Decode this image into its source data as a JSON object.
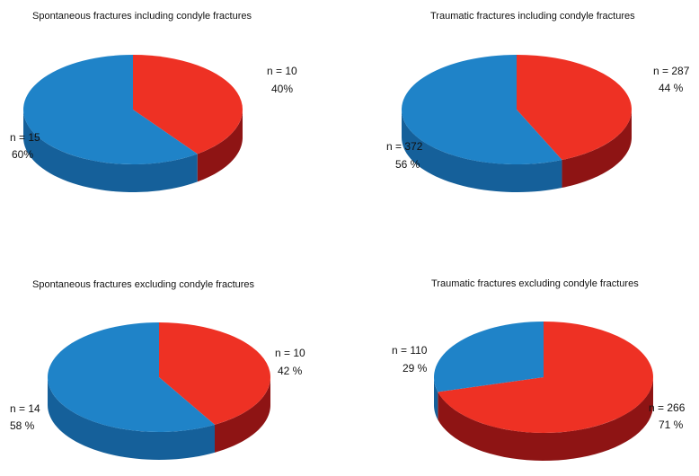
{
  "colors": {
    "blue_top": "#1f83c8",
    "blue_side": "#15609a",
    "red_top": "#ee3124",
    "red_side": "#8e1414"
  },
  "chart_data": [
    {
      "type": "pie",
      "title": "Spontaneous fractures including condyle fractures",
      "slices": [
        {
          "count_label": "n = 10",
          "percent_label": "40%",
          "value": 10,
          "color": "red"
        },
        {
          "count_label": "n = 15",
          "percent_label": "60%",
          "value": 15,
          "color": "blue"
        }
      ]
    },
    {
      "type": "pie",
      "title": "Traumatic fractures including condyle fractures",
      "slices": [
        {
          "count_label": "n = 287",
          "percent_label": "44 %",
          "value": 287,
          "color": "red"
        },
        {
          "count_label": "n = 372",
          "percent_label": "56 %",
          "value": 372,
          "color": "blue"
        }
      ]
    },
    {
      "type": "pie",
      "title": "Spontaneous fractures excluding condyle fractures",
      "slices": [
        {
          "count_label": "n = 10",
          "percent_label": "42 %",
          "value": 10,
          "color": "red"
        },
        {
          "count_label": "n = 14",
          "percent_label": "58 %",
          "value": 14,
          "color": "blue"
        }
      ]
    },
    {
      "type": "pie",
      "title": "Traumatic fractures excluding condyle fractures",
      "slices": [
        {
          "count_label": "n = 266",
          "percent_label": "71 %",
          "value": 266,
          "color": "red"
        },
        {
          "count_label": "n = 110",
          "percent_label": "29 %",
          "value": 110,
          "color": "blue"
        }
      ]
    }
  ]
}
